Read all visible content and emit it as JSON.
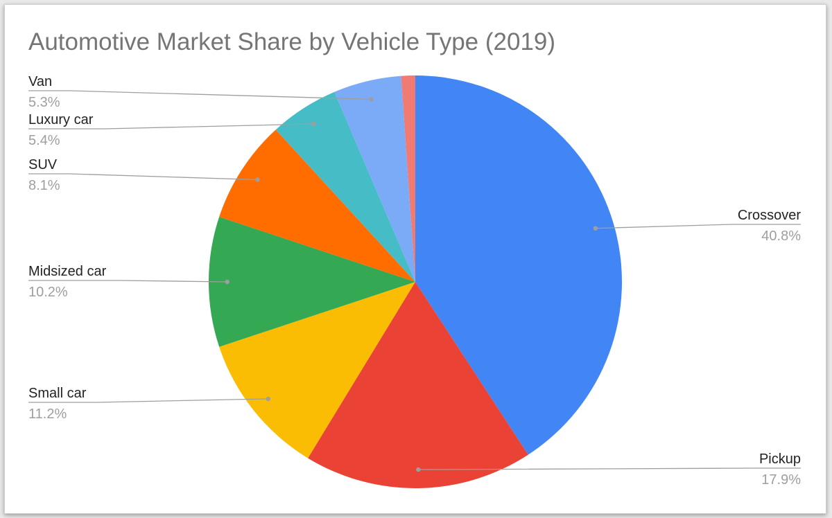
{
  "chart_data": {
    "type": "pie",
    "title": "Automotive Market Share by Vehicle Type (2019)",
    "slices": [
      {
        "name": "Crossover",
        "value": 40.8,
        "label": "40.8%",
        "color": "#4285f4",
        "label_side": "right"
      },
      {
        "name": "Pickup",
        "value": 17.9,
        "label": "17.9%",
        "color": "#ea4335",
        "label_side": "right"
      },
      {
        "name": "Small car",
        "value": 11.2,
        "label": "11.2%",
        "color": "#fbbc04",
        "label_side": "left"
      },
      {
        "name": "Midsized car",
        "value": 10.2,
        "label": "10.2%",
        "color": "#34a853",
        "label_side": "left"
      },
      {
        "name": "SUV",
        "value": 8.1,
        "label": "8.1%",
        "color": "#ff6d01",
        "label_side": "left"
      },
      {
        "name": "Luxury car",
        "value": 5.4,
        "label": "5.4%",
        "color": "#46bdc6",
        "label_side": "left"
      },
      {
        "name": "Van",
        "value": 5.3,
        "label": "5.3%",
        "color": "#7baaf7",
        "label_side": "left"
      },
      {
        "name": "",
        "value": 1.1,
        "label": "",
        "color": "#f07b72",
        "label_side": "none"
      }
    ],
    "start_angle": "12 o'clock",
    "direction": "clockwise",
    "legend": "none"
  }
}
